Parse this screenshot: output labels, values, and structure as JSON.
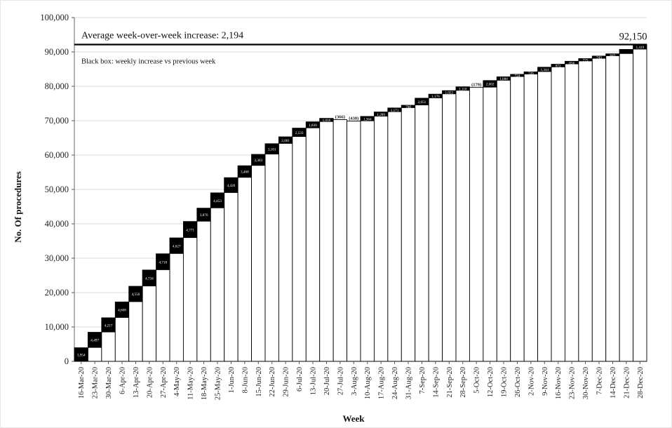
{
  "chart_data": {
    "type": "bar",
    "title": "",
    "xlabel": "Week",
    "ylabel": "No. Of procedures",
    "ylim": [
      0,
      100000
    ],
    "y_ticks": [
      0,
      10000,
      20000,
      30000,
      40000,
      50000,
      60000,
      70000,
      80000,
      90000,
      100000
    ],
    "y_tick_labels": [
      "0",
      "10,000",
      "20,000",
      "30,000",
      "40,000",
      "50,000",
      "60,000",
      "70,000",
      "80,000",
      "90,000",
      "100,000"
    ],
    "grid": true,
    "categories": [
      "16-Mar-20",
      "23-Mar-20",
      "30-Mar-20",
      "6-Apr-20",
      "13-Apr-20",
      "20-Apr-20",
      "27-Apr-20",
      "4-May-20",
      "11-May-20",
      "18-May-20",
      "25-May-20",
      "1-Jun-20",
      "8-Jun-20",
      "15-Jun-20",
      "22-Jun-20",
      "29-Jun-20",
      "6-Jul-20",
      "13-Jul-20",
      "20-Jul-20",
      "27-Jul-20",
      "3-Aug-20",
      "10-Aug-20",
      "17-Aug-20",
      "24-Aug-20",
      "31-Aug-20",
      "7-Sep-20",
      "14-Sep-20",
      "21-Sep-20",
      "28-Sep-20",
      "5-Oct-20",
      "12-Oct-20",
      "19-Oct-20",
      "26-Oct-20",
      "2-Nov-20",
      "9-Nov-20",
      "16-Nov-20",
      "23-Nov-20",
      "30-Nov-20",
      "7-Dec-20",
      "14-Dec-20",
      "21-Dec-20",
      "28-Dec-20"
    ],
    "series": [
      {
        "values": [
          3954,
          8451,
          12668,
          17276,
          21826,
          26560,
          31278,
          35905,
          40676,
          44552,
          49005,
          53425,
          56893,
          60196,
          63297,
          65298,
          67831,
          69661,
          70677,
          70311,
          69873,
          71237,
          72526,
          73697,
          74485,
          76536,
          77712,
          78734,
          79844,
          79665,
          81667,
          82755,
          83479,
          84205,
          85549,
          86421,
          87277,
          88052,
          88795,
          89438,
          90731,
          92150
        ]
      },
      {
        "values": [
          3954,
          4497,
          4217,
          4608,
          4550,
          4734,
          4718,
          4627,
          4771,
          3876,
          4453,
          4420,
          3468,
          3303,
          3101,
          2001,
          2533,
          1830,
          1016,
          -366,
          -438,
          1364,
          1289,
          1171,
          788,
          2051,
          1176,
          1022,
          1110,
          -179,
          2002,
          1088,
          724,
          726,
          1344,
          872,
          856,
          775,
          743,
          643,
          1293,
          1419
        ]
      }
    ],
    "increase_labels": [
      "3,954",
      "4,497",
      "4,217",
      "4,608",
      "4,550",
      "4,734",
      "4,718",
      "4,627",
      "4,771",
      "3,876",
      "4,453",
      "4,420",
      "3,468",
      "3,303",
      "3,101",
      "2,001",
      "2,533",
      "1,830",
      "1,016",
      "(366)",
      "(438)",
      "1,364",
      "1,289",
      "1,171",
      "788",
      "2,051",
      "1,176",
      "1,022",
      "1,110",
      "(179)",
      "2,002",
      "1,088",
      "724",
      "726",
      "1,344",
      "872",
      "856",
      "775",
      "743",
      "643",
      "",
      "1,419"
    ],
    "average_line": {
      "value": 92150,
      "label": "Average week-over-week increase: 2,194"
    },
    "annotation": "Black box: weekly increase vs previous week",
    "final_value_label": "92,150",
    "colors": {
      "bar_fill": "#ffffff",
      "bar_stroke": "#000000",
      "increase_box": "#000000",
      "grid": "#d9d9d9"
    }
  }
}
